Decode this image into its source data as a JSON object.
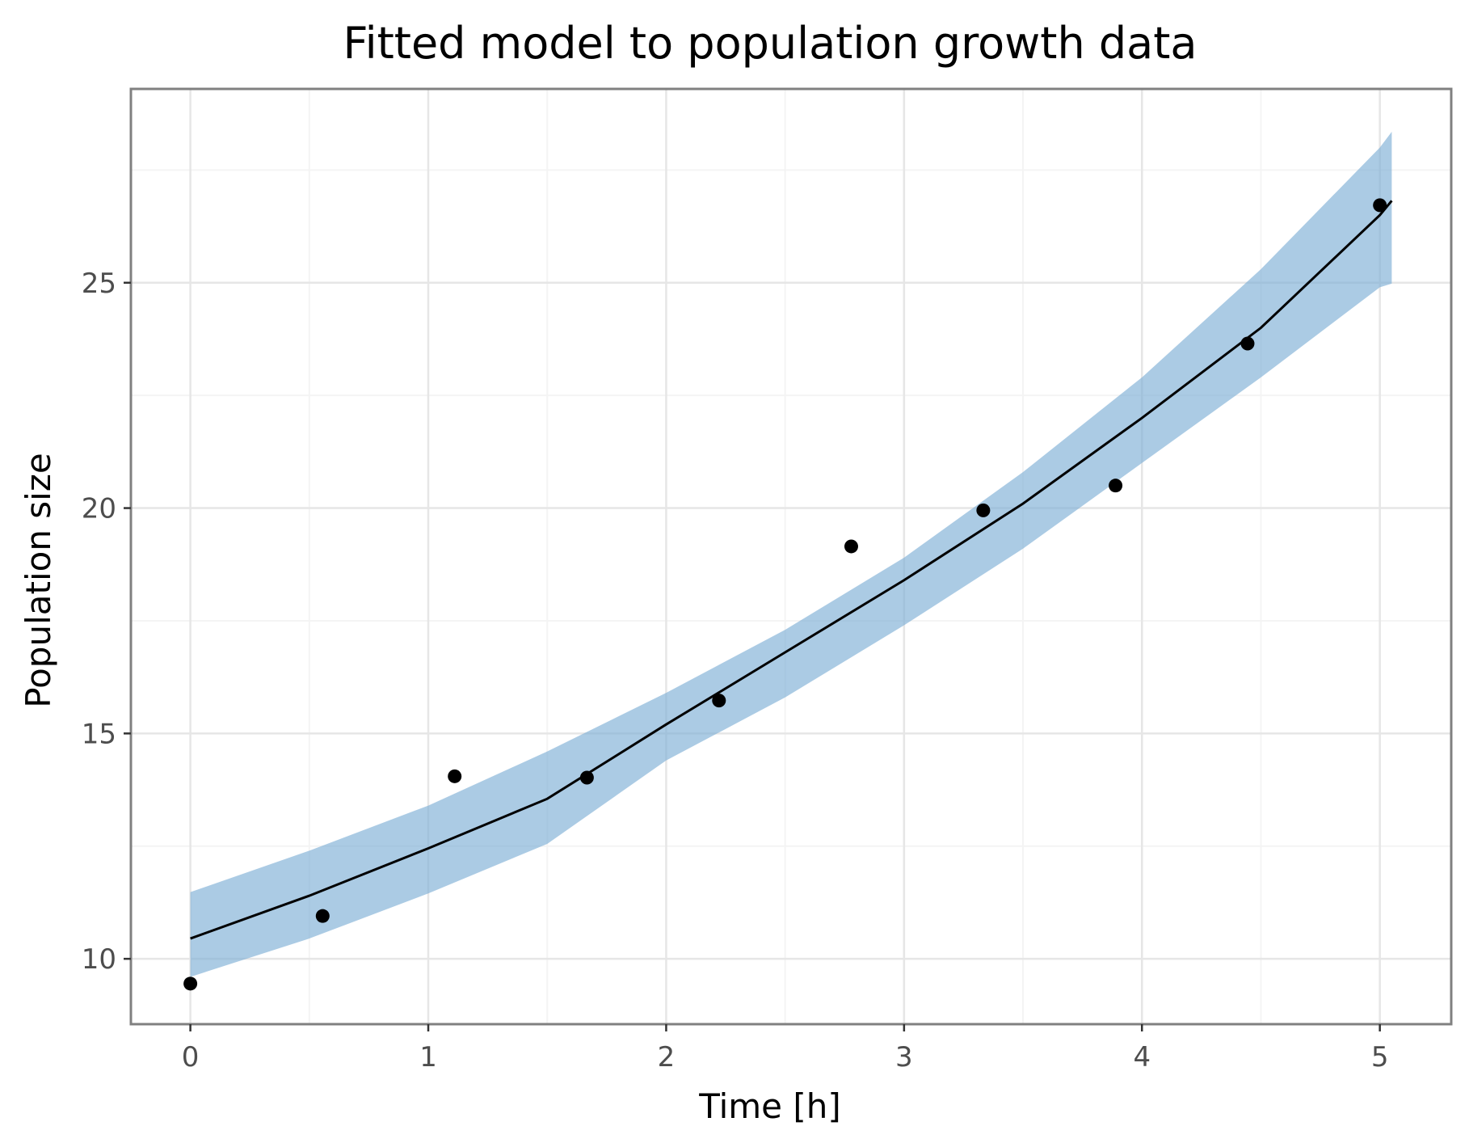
{
  "chart_data": {
    "type": "scatter",
    "title": "Fitted model to population growth data",
    "xlabel": "Time [h]",
    "ylabel": "Population size",
    "xlim": [
      -0.25,
      5.3
    ],
    "ylim": [
      8.55,
      29.3
    ],
    "x_ticks": [
      0,
      1,
      2,
      3,
      4,
      5
    ],
    "x_tick_labels": [
      "0",
      "1",
      "2",
      "3",
      "4",
      "5"
    ],
    "y_ticks": [
      10,
      15,
      20,
      25
    ],
    "y_tick_labels": [
      "10",
      "15",
      "20",
      "25"
    ],
    "grid": true,
    "legend": "none",
    "colors": {
      "points": "#000000",
      "fit_line": "#000000",
      "band": "#7eafd6",
      "panel_border": "#808080",
      "grid_major": "#e6e6e6",
      "grid_minor": "#f4f4f4",
      "tick_text": "#4d4d4d"
    },
    "series": [
      {
        "kind": "points",
        "x": [
          0.0,
          0.556,
          1.111,
          1.667,
          2.222,
          2.778,
          3.333,
          3.889,
          4.444,
          5.0
        ],
        "y": [
          9.45,
          10.95,
          14.05,
          14.02,
          15.73,
          19.15,
          19.95,
          20.5,
          23.65,
          26.72
        ]
      },
      {
        "kind": "fit",
        "x": [
          0.0,
          0.5,
          1.0,
          1.5,
          2.0,
          2.5,
          3.0,
          3.5,
          4.0,
          4.5,
          5.0,
          5.05
        ],
        "y": [
          10.45,
          11.4,
          12.45,
          13.55,
          15.2,
          16.8,
          18.4,
          20.1,
          22.0,
          24.0,
          26.5,
          26.82
        ],
        "upper": [
          11.48,
          12.4,
          13.4,
          14.6,
          15.9,
          17.3,
          18.9,
          20.8,
          22.9,
          25.3,
          28.0,
          28.35
        ],
        "lower": [
          9.6,
          10.45,
          11.45,
          12.55,
          14.4,
          15.8,
          17.4,
          19.1,
          21.0,
          22.9,
          24.9,
          24.98
        ]
      }
    ]
  }
}
